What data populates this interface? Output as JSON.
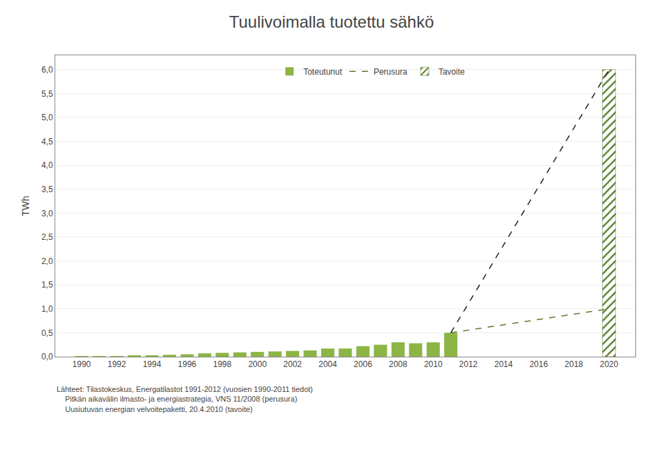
{
  "chart_data": {
    "type": "bar",
    "title": "Tuulivoimalla tuotettu sähkö",
    "y_label": "TWh",
    "series": [
      {
        "name": "Toteutunut",
        "type": "bar",
        "color": "#8CB545",
        "x": [
          1990,
          1991,
          1992,
          1993,
          1994,
          1995,
          1996,
          1997,
          1998,
          1999,
          2000,
          2001,
          2002,
          2003,
          2004,
          2005,
          2006,
          2007,
          2008,
          2009,
          2010,
          2011
        ],
        "values": [
          0.01,
          0.01,
          0.01,
          0.02,
          0.03,
          0.04,
          0.05,
          0.07,
          0.08,
          0.09,
          0.1,
          0.11,
          0.12,
          0.13,
          0.17,
          0.17,
          0.22,
          0.25,
          0.3,
          0.28,
          0.3,
          0.5
        ]
      },
      {
        "name": "Perusura",
        "type": "line",
        "line_style": "dashed",
        "color": "#5A7A28",
        "x": [
          2011,
          2020
        ],
        "values": [
          0.5,
          1.0
        ]
      },
      {
        "name": "Tavoite",
        "type": "bar",
        "marker": "hatched",
        "color": "#8CB545",
        "x": [
          2020
        ],
        "values": [
          6.0
        ]
      },
      {
        "name": "Tavoite",
        "type": "line",
        "line_style": "dashed",
        "color": "#222222",
        "x": [
          2011,
          2020
        ],
        "values": [
          0.5,
          6.0
        ]
      }
    ],
    "xlim": [
      1988.5,
      2021.5
    ],
    "xticks": [
      1990,
      1992,
      1994,
      1996,
      1998,
      2000,
      2002,
      2004,
      2006,
      2008,
      2010,
      2012,
      2014,
      2016,
      2018,
      2020
    ],
    "ylim": [
      0.0,
      6.3
    ],
    "yticks": [
      {
        "value": 0.0,
        "label": "0,0"
      },
      {
        "value": 0.5,
        "label": "0,5"
      },
      {
        "value": 1.0,
        "label": "1,0"
      },
      {
        "value": 1.5,
        "label": "1,5"
      },
      {
        "value": 2.0,
        "label": "2,0"
      },
      {
        "value": 2.5,
        "label": "2,5"
      },
      {
        "value": 3.0,
        "label": "3,0"
      },
      {
        "value": 3.5,
        "label": "3,5"
      },
      {
        "value": 4.0,
        "label": "4,0"
      },
      {
        "value": 4.5,
        "label": "4,5"
      },
      {
        "value": 5.0,
        "label": "5,0"
      },
      {
        "value": 5.5,
        "label": "5,5"
      },
      {
        "value": 6.0,
        "label": "6,0"
      }
    ],
    "grid": "y",
    "legend": "top",
    "annotations": [
      "Lähteet: Tilastokeskus, Energatilastot 1991-2012 (vuosien 1990-2011 tiedot)",
      "    Pitkän aikavälin ilmasto- ja energiastrategia, VNS 11/2008 (perusura)",
      "    Uusiutuvan energian velvoitepaketti, 20.4.2010 (tavoite)"
    ]
  }
}
